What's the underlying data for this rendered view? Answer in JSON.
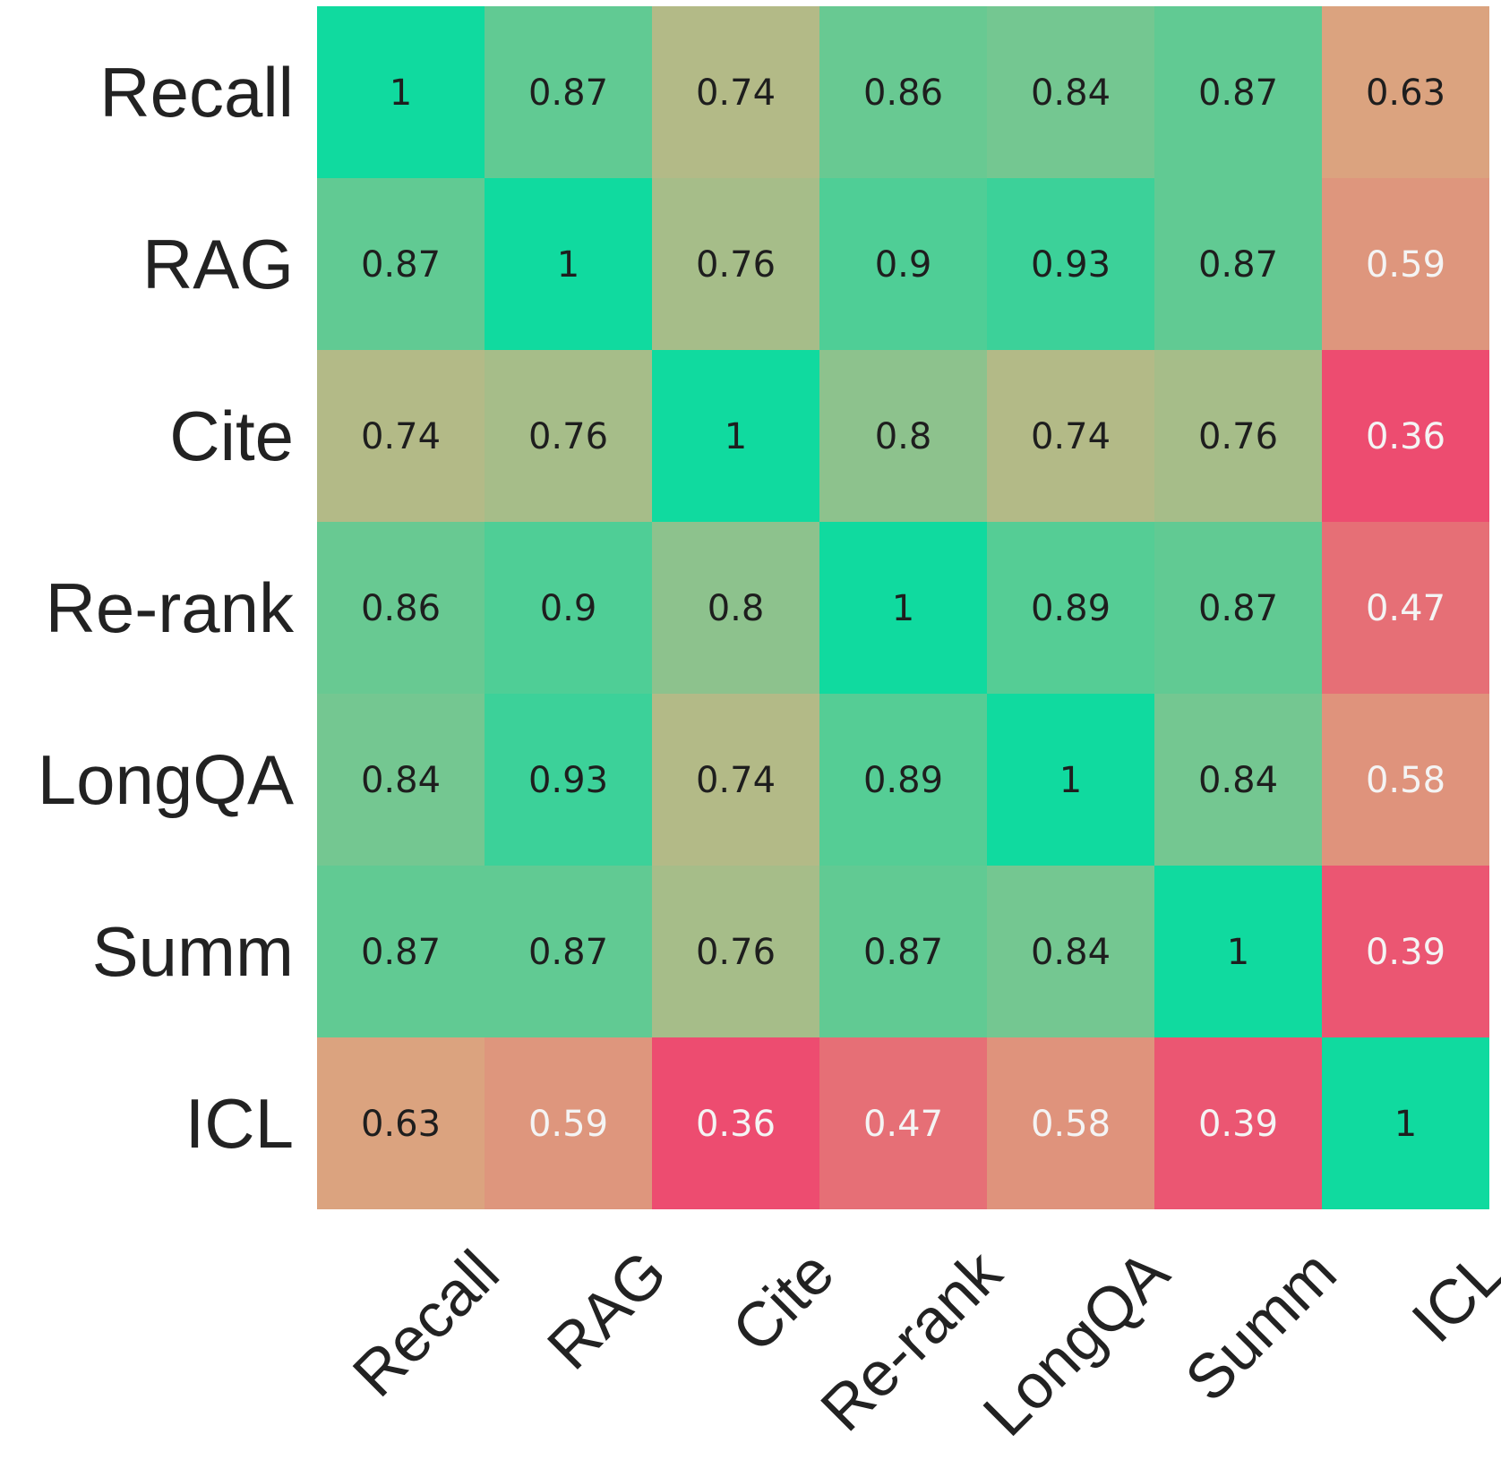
{
  "chart_data": {
    "type": "heatmap",
    "title": "",
    "xlabel": "",
    "ylabel": "",
    "row_labels": [
      "Recall",
      "RAG",
      "Cite",
      "Re-rank",
      "LongQA",
      "Summ",
      "ICL"
    ],
    "col_labels": [
      "Recall",
      "RAG",
      "Cite",
      "Re-rank",
      "LongQA",
      "Summ",
      "ICL"
    ],
    "values": [
      [
        1,
        0.87,
        0.74,
        0.86,
        0.84,
        0.87,
        0.63
      ],
      [
        0.87,
        1,
        0.76,
        0.9,
        0.93,
        0.87,
        0.59
      ],
      [
        0.74,
        0.76,
        1,
        0.8,
        0.74,
        0.76,
        0.36
      ],
      [
        0.86,
        0.9,
        0.8,
        1,
        0.89,
        0.87,
        0.47
      ],
      [
        0.84,
        0.93,
        0.74,
        0.89,
        1,
        0.84,
        0.58
      ],
      [
        0.87,
        0.87,
        0.76,
        0.87,
        0.84,
        1,
        0.39
      ],
      [
        0.63,
        0.59,
        0.36,
        0.47,
        0.58,
        0.39,
        1
      ]
    ],
    "value_labels": [
      [
        "1",
        "0.87",
        "0.74",
        "0.86",
        "0.84",
        "0.87",
        "0.63"
      ],
      [
        "0.87",
        "1",
        "0.76",
        "0.9",
        "0.93",
        "0.87",
        "0.59"
      ],
      [
        "0.74",
        "0.76",
        "1",
        "0.8",
        "0.74",
        "0.76",
        "0.36"
      ],
      [
        "0.86",
        "0.9",
        "0.8",
        "1",
        "0.89",
        "0.87",
        "0.47"
      ],
      [
        "0.84",
        "0.93",
        "0.74",
        "0.89",
        "1",
        "0.84",
        "0.58"
      ],
      [
        "0.87",
        "0.87",
        "0.76",
        "0.87",
        "0.84",
        "1",
        "0.39"
      ],
      [
        "0.63",
        "0.59",
        "0.36",
        "0.47",
        "0.58",
        "0.39",
        "1"
      ]
    ],
    "color_range": [
      0.36,
      1
    ],
    "colorbar": false,
    "colors": {
      "low": "#ed4c70",
      "mid": "#d8b382",
      "high": "#10da9f",
      "dark_text": "#1e1e1e",
      "light_text": "#f4f4f4"
    }
  }
}
